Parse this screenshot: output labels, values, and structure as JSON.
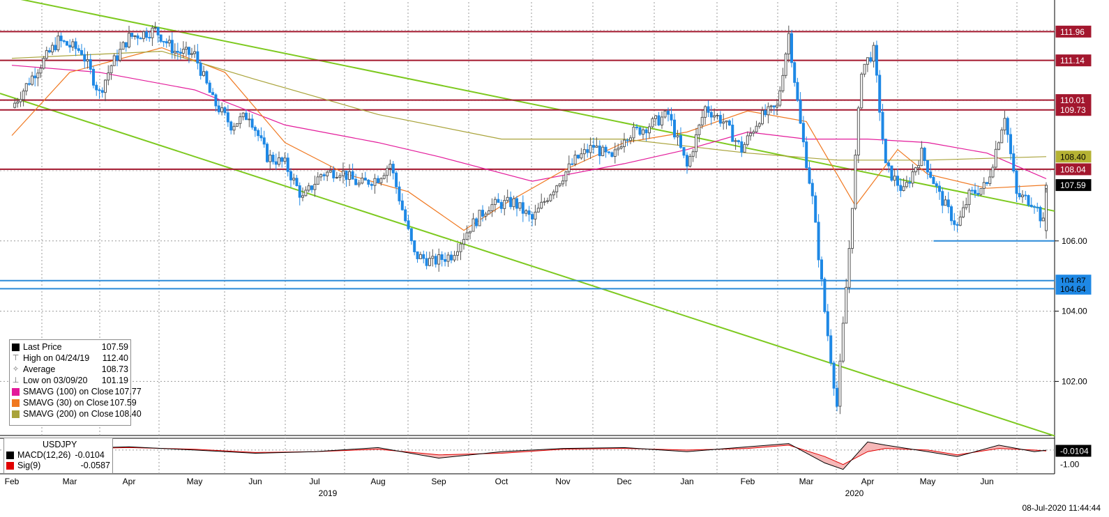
{
  "chart_data": {
    "type": "candlestick",
    "instrument": "USDJPY",
    "price_axis": {
      "ticks": [
        102.0,
        104.0,
        106.0
      ],
      "range": [
        100.5,
        112.8
      ]
    },
    "x_axis": {
      "months": [
        "Feb",
        "Mar",
        "Apr",
        "May",
        "Jun",
        "Jul",
        "Aug",
        "Sep",
        "Oct",
        "Nov",
        "Dec",
        "Jan",
        "Feb",
        "Mar",
        "Apr",
        "May",
        "Jun"
      ],
      "years": [
        "2019",
        "2020"
      ]
    },
    "price_tags": [
      {
        "label": "111.96",
        "value": 111.96,
        "color": "#a3172e",
        "text_color": "#ffffff"
      },
      {
        "label": "111.14",
        "value": 111.14,
        "color": "#a3172e",
        "text_color": "#ffffff"
      },
      {
        "label": "110.01",
        "value": 110.01,
        "color": "#a3172e",
        "text_color": "#ffffff"
      },
      {
        "label": "109.73",
        "value": 109.73,
        "color": "#a3172e",
        "text_color": "#ffffff"
      },
      {
        "label": "108.40",
        "value": 108.4,
        "color": "#b5b233",
        "text_color": "#000000"
      },
      {
        "label": "108.04",
        "value": 108.04,
        "color": "#a3172e",
        "text_color": "#ffffff"
      },
      {
        "label": "107.59",
        "value": 107.59,
        "color": "#000000",
        "text_color": "#ffffff"
      },
      {
        "label": "104.87",
        "value": 104.87,
        "color": "#1e88e5",
        "text_color": "#000000"
      },
      {
        "label": "104.64",
        "value": 104.64,
        "color": "#1e88e5",
        "text_color": "#000000"
      }
    ],
    "horizontal_levels": [
      {
        "value": 111.96,
        "color": "#a3172e"
      },
      {
        "value": 111.14,
        "color": "#a3172e"
      },
      {
        "value": 110.01,
        "color": "#a3172e"
      },
      {
        "value": 109.73,
        "color": "#a3172e"
      },
      {
        "value": 108.04,
        "color": "#a3172e"
      },
      {
        "value": 104.87,
        "color": "#2b8ad8"
      },
      {
        "value": 104.64,
        "color": "#2b8ad8"
      },
      {
        "value": 106.0,
        "color": "#2b8ad8",
        "from_month_index": 15.1
      }
    ],
    "trendlines": [
      {
        "from": [
          0.0,
          113.0
        ],
        "to": [
          17.7,
          106.85
        ],
        "color": "#7dc91f"
      },
      {
        "from": [
          0.0,
          110.2
        ],
        "to": [
          17.7,
          100.45
        ],
        "color": "#7dc91f"
      }
    ],
    "close_path": [
      [
        0.0,
        109.8
      ],
      [
        0.4,
        110.8
      ],
      [
        0.8,
        111.7
      ],
      [
        1.2,
        111.4
      ],
      [
        1.5,
        110.2
      ],
      [
        1.7,
        111.0
      ],
      [
        2.0,
        111.8
      ],
      [
        2.4,
        112.0
      ],
      [
        2.7,
        111.4
      ],
      [
        3.0,
        111.3
      ],
      [
        3.3,
        110.0
      ],
      [
        3.6,
        109.3
      ],
      [
        3.9,
        109.6
      ],
      [
        4.2,
        108.4
      ],
      [
        4.5,
        108.2
      ],
      [
        4.8,
        107.2
      ],
      [
        5.1,
        107.9
      ],
      [
        5.4,
        108.0
      ],
      [
        5.7,
        107.6
      ],
      [
        6.0,
        107.8
      ],
      [
        6.2,
        108.2
      ],
      [
        6.4,
        106.9
      ],
      [
        6.6,
        105.6
      ],
      [
        6.9,
        105.4
      ],
      [
        7.2,
        105.6
      ],
      [
        7.5,
        106.4
      ],
      [
        7.8,
        107.0
      ],
      [
        8.2,
        107.1
      ],
      [
        8.5,
        106.6
      ],
      [
        8.8,
        107.4
      ],
      [
        9.2,
        108.3
      ],
      [
        9.5,
        108.7
      ],
      [
        9.8,
        108.3
      ],
      [
        10.0,
        109.0
      ],
      [
        10.3,
        109.2
      ],
      [
        10.7,
        109.6
      ],
      [
        11.0,
        108.1
      ],
      [
        11.3,
        109.8
      ],
      [
        11.6,
        109.4
      ],
      [
        11.9,
        108.6
      ],
      [
        12.2,
        109.5
      ],
      [
        12.5,
        109.8
      ],
      [
        12.7,
        111.9
      ],
      [
        12.9,
        109.3
      ],
      [
        13.1,
        107.2
      ],
      [
        13.3,
        104.0
      ],
      [
        13.5,
        101.3
      ],
      [
        13.7,
        105.8
      ],
      [
        13.9,
        110.9
      ],
      [
        14.1,
        111.4
      ],
      [
        14.3,
        108.1
      ],
      [
        14.6,
        107.4
      ],
      [
        14.9,
        108.5
      ],
      [
        15.2,
        107.3
      ],
      [
        15.5,
        106.4
      ],
      [
        15.7,
        107.3
      ],
      [
        16.0,
        107.6
      ],
      [
        16.3,
        109.6
      ],
      [
        16.5,
        107.3
      ],
      [
        16.8,
        107.1
      ],
      [
        17.0,
        106.3
      ],
      [
        17.3,
        107.6
      ],
      [
        17.55,
        107.59
      ]
    ],
    "series": [
      {
        "name": "SMAVG (100)  on Close",
        "color": "#e31a9a",
        "values": [
          [
            0.0,
            111.0
          ],
          [
            1.5,
            110.8
          ],
          [
            3.0,
            110.3
          ],
          [
            4.5,
            109.3
          ],
          [
            6.0,
            108.8
          ],
          [
            7.0,
            108.4
          ],
          [
            8.5,
            107.7
          ],
          [
            10.0,
            108.2
          ],
          [
            11.0,
            108.6
          ],
          [
            12.0,
            109.1
          ],
          [
            13.0,
            108.9
          ],
          [
            14.0,
            108.9
          ],
          [
            15.0,
            108.8
          ],
          [
            16.0,
            108.5
          ],
          [
            17.55,
            107.77
          ]
        ]
      },
      {
        "name": "SMAVG (30)  on Close",
        "color": "#f07820",
        "values": [
          [
            0.0,
            109.0
          ],
          [
            1.0,
            110.8
          ],
          [
            2.5,
            111.5
          ],
          [
            3.5,
            110.8
          ],
          [
            4.5,
            108.8
          ],
          [
            5.5,
            107.9
          ],
          [
            6.5,
            107.4
          ],
          [
            7.4,
            106.3
          ],
          [
            8.0,
            107.0
          ],
          [
            9.0,
            108.0
          ],
          [
            10.0,
            108.8
          ],
          [
            11.0,
            109.1
          ],
          [
            12.0,
            109.7
          ],
          [
            13.0,
            109.4
          ],
          [
            13.8,
            107.0
          ],
          [
            14.5,
            108.6
          ],
          [
            15.0,
            107.9
          ],
          [
            16.0,
            107.5
          ],
          [
            17.55,
            107.59
          ]
        ]
      },
      {
        "name": "SMAVG (200)  on Close",
        "color": "#a9a33a",
        "values": [
          [
            0.0,
            111.2
          ],
          [
            2.5,
            111.4
          ],
          [
            4.0,
            110.6
          ],
          [
            6.0,
            109.6
          ],
          [
            8.0,
            108.9
          ],
          [
            10.0,
            108.9
          ],
          [
            12.0,
            108.5
          ],
          [
            13.5,
            108.3
          ],
          [
            15.0,
            108.3
          ],
          [
            17.55,
            108.4
          ]
        ]
      }
    ],
    "legend": [
      {
        "label": "Last Price",
        "value": "107.59",
        "marker": "square",
        "color": "#000000"
      },
      {
        "label": "High on 04/24/19",
        "value": "112.40",
        "marker": "high",
        "color": "#666666"
      },
      {
        "label": "Average",
        "value": "108.73",
        "marker": "avg",
        "color": "#666666"
      },
      {
        "label": "Low on 03/09/20",
        "value": "101.19",
        "marker": "low",
        "color": "#666666"
      },
      {
        "label": "SMAVG (100)  on Close",
        "value": "107.77",
        "marker": "square",
        "color": "#e31a9a"
      },
      {
        "label": "SMAVG (30)  on Close",
        "value": "107.59",
        "marker": "square",
        "color": "#f07820"
      },
      {
        "label": "SMAVG (200)  on Close",
        "value": "108.40",
        "marker": "square",
        "color": "#a9a33a"
      }
    ],
    "macd_panel": {
      "title": "USDJPY",
      "rows": [
        {
          "label": "MACD(12,26)",
          "value": "-0.0104",
          "color": "#000000"
        },
        {
          "label": "Sig(9)",
          "value": "-0.0587",
          "color": "#e00000"
        }
      ],
      "tags": [
        {
          "label": "-0.0104",
          "color": "#000000",
          "text_color": "#ffffff"
        },
        {
          "label": "-1.00",
          "color": "#ffffff",
          "text_color": "#000000"
        }
      ],
      "macd_values": [
        [
          0,
          0.05
        ],
        [
          1,
          0.1
        ],
        [
          2,
          0.2
        ],
        [
          3,
          0.0
        ],
        [
          4,
          -0.2
        ],
        [
          5,
          -0.1
        ],
        [
          6,
          0.15
        ],
        [
          7,
          -0.5
        ],
        [
          8,
          -0.1
        ],
        [
          9,
          0.1
        ],
        [
          10,
          0.15
        ],
        [
          11,
          -0.1
        ],
        [
          12,
          0.2
        ],
        [
          12.7,
          0.4
        ],
        [
          13.3,
          -0.8
        ],
        [
          13.6,
          -1.2
        ],
        [
          14.0,
          0.5
        ],
        [
          14.3,
          0.3
        ],
        [
          15,
          -0.1
        ],
        [
          15.5,
          -0.4
        ],
        [
          16.2,
          0.3
        ],
        [
          16.8,
          -0.1
        ],
        [
          17.55,
          -0.0104
        ]
      ],
      "signal_values": [
        [
          0,
          0.05
        ],
        [
          1,
          0.08
        ],
        [
          2,
          0.15
        ],
        [
          3,
          0.05
        ],
        [
          4,
          -0.15
        ],
        [
          5,
          -0.1
        ],
        [
          6,
          0.05
        ],
        [
          7,
          -0.3
        ],
        [
          8,
          -0.2
        ],
        [
          9,
          0.05
        ],
        [
          10,
          0.1
        ],
        [
          11,
          0.0
        ],
        [
          12,
          0.1
        ],
        [
          12.7,
          0.3
        ],
        [
          13.3,
          -0.4
        ],
        [
          13.6,
          -0.9
        ],
        [
          14.0,
          -0.1
        ],
        [
          14.3,
          0.1
        ],
        [
          15,
          0.0
        ],
        [
          15.5,
          -0.3
        ],
        [
          16.2,
          0.1
        ],
        [
          16.8,
          0.0
        ],
        [
          17.55,
          -0.0587
        ]
      ]
    }
  },
  "timestamp": "08-Jul-2020 11:44:44"
}
